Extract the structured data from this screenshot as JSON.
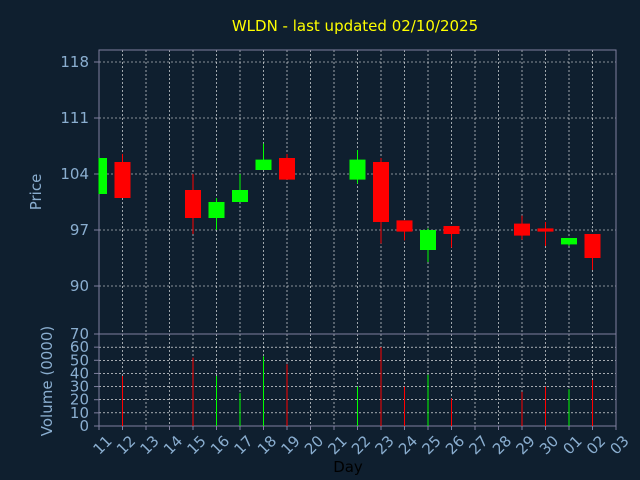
{
  "title": "WLDN - last updated 02/10/2025",
  "colors": {
    "background": "#0f1f2f",
    "title": "#ffff00",
    "axis_text": "#8aaed0",
    "axis_line": "#7f7f9f",
    "grid": "#ffffff",
    "up": "#00ff00",
    "down": "#ff0000"
  },
  "chart_data": [
    {
      "type": "candlestick",
      "title": "WLDN - last updated 02/10/2025",
      "ylabel": "Price",
      "ylim": [
        84,
        119.5
      ],
      "yticks": [
        90,
        97,
        104,
        111,
        118
      ],
      "grid": true,
      "categories": [
        "11",
        "12",
        "13",
        "14",
        "15",
        "16",
        "17",
        "18",
        "19",
        "20",
        "21",
        "22",
        "23",
        "24",
        "25",
        "26",
        "27",
        "28",
        "29",
        "30",
        "01",
        "02",
        "03"
      ],
      "candles": [
        {
          "x": "11",
          "open": 101.5,
          "close": 106,
          "high": 106,
          "low": 101.5
        },
        {
          "x": "12",
          "open": 105.5,
          "close": 101,
          "high": 106.5,
          "low": 101
        },
        {
          "x": "15",
          "open": 102,
          "close": 98.5,
          "high": 104,
          "low": 96.5
        },
        {
          "x": "16",
          "open": 98.5,
          "close": 100.5,
          "high": 101,
          "low": 97
        },
        {
          "x": "17",
          "open": 100.5,
          "close": 102,
          "high": 104,
          "low": 100.5
        },
        {
          "x": "18",
          "open": 104.5,
          "close": 105.8,
          "high": 107.8,
          "low": 104.5
        },
        {
          "x": "19",
          "open": 106,
          "close": 103.3,
          "high": 106.5,
          "low": 103.3
        },
        {
          "x": "22",
          "open": 103.3,
          "close": 105.8,
          "high": 107,
          "low": 102.8
        },
        {
          "x": "23",
          "open": 105.5,
          "close": 98,
          "high": 106,
          "low": 95.3
        },
        {
          "x": "24",
          "open": 98.2,
          "close": 96.8,
          "high": 98.2,
          "low": 95.7
        },
        {
          "x": "25",
          "open": 94.5,
          "close": 97,
          "high": 97.2,
          "low": 93
        },
        {
          "x": "26",
          "open": 97.5,
          "close": 96.5,
          "high": 97.5,
          "low": 94.8
        },
        {
          "x": "29",
          "open": 97.8,
          "close": 96.3,
          "high": 98.8,
          "low": 95.8
        },
        {
          "x": "30",
          "open": 97.2,
          "close": 96.8,
          "high": 98,
          "low": 95
        },
        {
          "x": "01",
          "open": 95.2,
          "close": 96,
          "high": 96,
          "low": 95
        },
        {
          "x": "02",
          "open": 96.5,
          "close": 93.5,
          "high": 96.5,
          "low": 92
        }
      ]
    },
    {
      "type": "bar",
      "ylabel": "Volume (0000)",
      "xlabel": "Day",
      "ylim": [
        0,
        70
      ],
      "yticks": [
        0,
        10,
        20,
        30,
        40,
        50,
        60,
        70
      ],
      "grid": true,
      "categories": [
        "11",
        "12",
        "13",
        "14",
        "15",
        "16",
        "17",
        "18",
        "19",
        "20",
        "21",
        "22",
        "23",
        "24",
        "25",
        "26",
        "27",
        "28",
        "29",
        "30",
        "01",
        "02",
        "03"
      ],
      "bars": [
        {
          "x": "12",
          "value": 38,
          "dir": "down"
        },
        {
          "x": "15",
          "value": 52,
          "dir": "down"
        },
        {
          "x": "16",
          "value": 38,
          "dir": "up"
        },
        {
          "x": "17",
          "value": 25,
          "dir": "up"
        },
        {
          "x": "18",
          "value": 53,
          "dir": "up"
        },
        {
          "x": "19",
          "value": 47,
          "dir": "down"
        },
        {
          "x": "22",
          "value": 30,
          "dir": "up"
        },
        {
          "x": "23",
          "value": 60,
          "dir": "down"
        },
        {
          "x": "24",
          "value": 30,
          "dir": "down"
        },
        {
          "x": "25",
          "value": 39,
          "dir": "up"
        },
        {
          "x": "26",
          "value": 21,
          "dir": "down"
        },
        {
          "x": "29",
          "value": 26,
          "dir": "down"
        },
        {
          "x": "30",
          "value": 30,
          "dir": "down"
        },
        {
          "x": "01",
          "value": 28,
          "dir": "up"
        },
        {
          "x": "02",
          "value": 35,
          "dir": "down"
        }
      ]
    }
  ]
}
